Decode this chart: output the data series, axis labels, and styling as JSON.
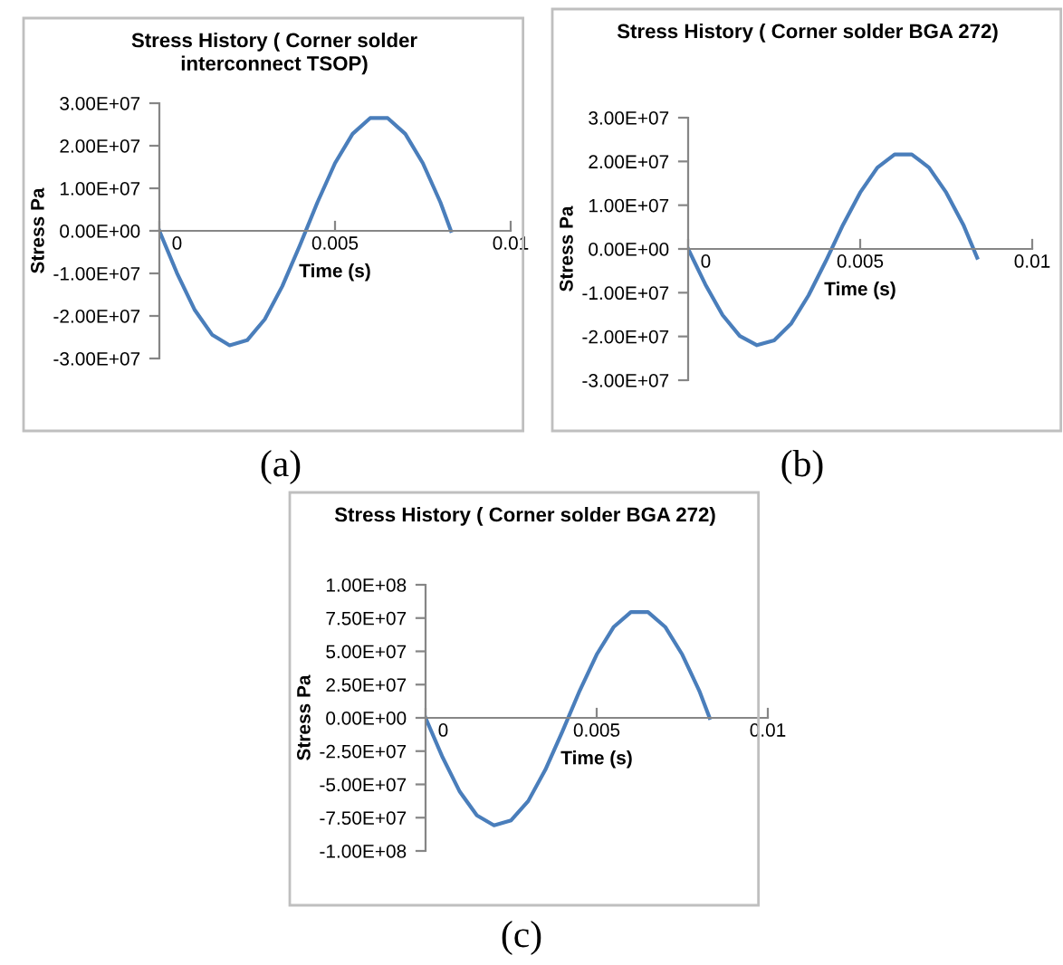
{
  "chart_data": [
    {
      "type": "line",
      "title": "Stress History ( Corner solder interconnect TSOP)",
      "xlabel": "Time (s)",
      "ylabel": "Stress Pa",
      "annotations": [
        "(a)"
      ],
      "grid": false,
      "legend": false,
      "marker": "none",
      "line_style": "solid",
      "series": [
        {
          "color": "#4a7ebb",
          "x": [
            0,
            0.0005,
            0.001,
            0.0015,
            0.002,
            0.0025,
            0.003,
            0.0035,
            0.004,
            0.0045,
            0.005,
            0.0055,
            0.006,
            0.0065,
            0.007,
            0.0075,
            0.008,
            0.0083
          ],
          "values": [
            0,
            -9900000.0,
            -18500000.0,
            -24400000.0,
            -26900000.0,
            -25700000.0,
            -20800000.0,
            -13000000.0,
            -3400000.0,
            6700000.0,
            15900000.0,
            22800000.0,
            26500000.0,
            26500000.0,
            22800000.0,
            15900000.0,
            6700000.0,
            0
          ]
        }
      ],
      "xlim": [
        0,
        0.01
      ],
      "xticks": [
        0,
        0.005,
        0.01
      ],
      "ylim": [
        -30000000.0,
        30000000.0
      ],
      "yticks": [
        {
          "value": -30000000.0,
          "label": "-3.00E+07"
        },
        {
          "value": -20000000.0,
          "label": "-2.00E+07"
        },
        {
          "value": -10000000.0,
          "label": "-1.00E+07"
        },
        {
          "value": 0,
          "label": "0.00E+00"
        },
        {
          "value": 10000000.0,
          "label": "1.00E+07"
        },
        {
          "value": 20000000.0,
          "label": "2.00E+07"
        },
        {
          "value": 30000000.0,
          "label": "3.00E+07"
        }
      ]
    },
    {
      "type": "line",
      "title": "Stress History ( Corner solder BGA 272)",
      "xlabel": "Time (s)",
      "ylabel": "Stress Pa",
      "annotations": [
        "(b)"
      ],
      "grid": false,
      "legend": false,
      "marker": "none",
      "line_style": "solid",
      "series": [
        {
          "color": "#4a7ebb",
          "x": [
            0,
            0.0005,
            0.001,
            0.0015,
            0.002,
            0.0025,
            0.003,
            0.0035,
            0.004,
            0.0045,
            0.005,
            0.0055,
            0.006,
            0.0065,
            0.007,
            0.0075,
            0.008,
            0.0084
          ],
          "values": [
            0,
            -8100000.0,
            -15100000.0,
            -19900000.0,
            -22000000.0,
            -20900000.0,
            -17000000.0,
            -10600000.0,
            -2800000.0,
            5500000.0,
            12900000.0,
            18600000.0,
            21600000.0,
            21600000.0,
            18600000.0,
            12900000.0,
            5500000.0,
            -2000000.0
          ]
        }
      ],
      "xlim": [
        0,
        0.01
      ],
      "xticks": [
        0,
        0.005,
        0.01
      ],
      "ylim": [
        -30000000.0,
        30000000.0
      ],
      "yticks": [
        {
          "value": -30000000.0,
          "label": "-3.00E+07"
        },
        {
          "value": -20000000.0,
          "label": "-2.00E+07"
        },
        {
          "value": -10000000.0,
          "label": "-1.00E+07"
        },
        {
          "value": 0,
          "label": "0.00E+00"
        },
        {
          "value": 10000000.0,
          "label": "1.00E+07"
        },
        {
          "value": 20000000.0,
          "label": "2.00E+07"
        },
        {
          "value": 30000000.0,
          "label": "3.00E+07"
        }
      ]
    },
    {
      "type": "line",
      "title": "Stress History ( Corner solder BGA 272)",
      "xlabel": "Time (s)",
      "ylabel": "Stress Pa",
      "annotations": [
        "(c)"
      ],
      "grid": false,
      "legend": false,
      "marker": "none",
      "line_style": "solid",
      "series": [
        {
          "color": "#4a7ebb",
          "x": [
            0,
            0.0005,
            0.001,
            0.0015,
            0.002,
            0.0025,
            0.003,
            0.0035,
            0.004,
            0.0045,
            0.005,
            0.0055,
            0.006,
            0.0065,
            0.007,
            0.0075,
            0.008,
            0.0083
          ],
          "values": [
            0,
            -29800000.0,
            -55500000.0,
            -73300000.0,
            -80800000.0,
            -77000000.0,
            -62500000.0,
            -39000000.0,
            -10100000.0,
            20200000.0,
            47600000.0,
            68400000.0,
            79500000.0,
            79500000.0,
            68400000.0,
            47600000.0,
            20200000.0,
            0
          ]
        }
      ],
      "xlim": [
        0,
        0.01
      ],
      "xticks": [
        0,
        0.005,
        0.01
      ],
      "ylim": [
        -100000000.0,
        100000000.0
      ],
      "yticks": [
        {
          "value": -100000000.0,
          "label": "-1.00E+08"
        },
        {
          "value": -75000000.0,
          "label": "-7.50E+07"
        },
        {
          "value": -50000000.0,
          "label": "-5.00E+07"
        },
        {
          "value": -25000000.0,
          "label": "-2.50E+07"
        },
        {
          "value": 0,
          "label": "0.00E+00"
        },
        {
          "value": 25000000.0,
          "label": "2.50E+07"
        },
        {
          "value": 50000000.0,
          "label": "5.00E+07"
        },
        {
          "value": 75000000.0,
          "label": "7.50E+07"
        },
        {
          "value": 100000000.0,
          "label": "1.00E+08"
        }
      ]
    }
  ]
}
